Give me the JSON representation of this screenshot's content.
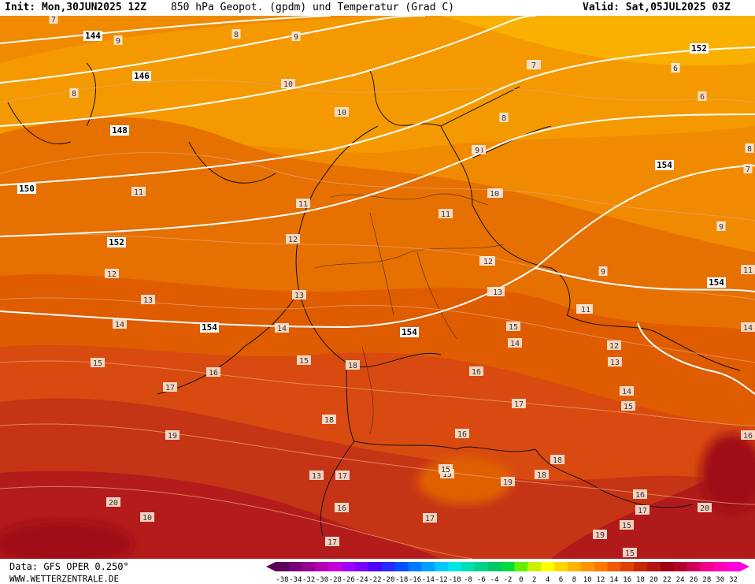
{
  "header": {
    "init": "Init: Mon,30JUN2025 12Z",
    "title": "850 hPa Geopot. (gpdm) und Temperatur (Grad C)",
    "valid": "Valid: Sat,05JUL2025 03Z"
  },
  "footer": {
    "source": "Data: GFS OPER 0.250°",
    "site": "WWW.WETTERZENTRALE.DE"
  },
  "colorbar": {
    "labels": [
      "-38",
      "-34",
      "-32",
      "-30",
      "-28",
      "-26",
      "-24",
      "-22",
      "-20",
      "-18",
      "-16",
      "-14",
      "-12",
      "-10",
      "-8",
      "-6",
      "-4",
      "-2",
      "0",
      "2",
      "4",
      "6",
      "8",
      "10",
      "12",
      "14",
      "16",
      "18",
      "20",
      "22",
      "24",
      "26",
      "28",
      "30",
      "32"
    ],
    "colors": [
      "#5a005a",
      "#780078",
      "#960096",
      "#b400b4",
      "#c800dc",
      "#a000ff",
      "#7800ff",
      "#5000ff",
      "#2828ff",
      "#0050ff",
      "#0078ff",
      "#00a0ff",
      "#00c8ff",
      "#00e6e6",
      "#00dcb4",
      "#00d28c",
      "#00c864",
      "#00dc3c",
      "#64f000",
      "#c8f000",
      "#ffff00",
      "#ffd700",
      "#ffb400",
      "#ff9600",
      "#ff7800",
      "#f05a00",
      "#e04000",
      "#c82800",
      "#b41414",
      "#a00014",
      "#b4002d",
      "#d2005a",
      "#f0008c",
      "#ff00b4",
      "#ff00dc"
    ]
  },
  "map": {
    "geopotential_labels": [
      {
        "text": "144"
      },
      {
        "text": "146"
      },
      {
        "text": "148"
      },
      {
        "text": "150"
      },
      {
        "text": "152"
      },
      {
        "text": "154"
      },
      {
        "text": "152"
      },
      {
        "text": "154"
      },
      {
        "text": "154"
      },
      {
        "text": "154"
      }
    ],
    "temperature_labels": [
      {
        "text": "7"
      },
      {
        "text": "9"
      },
      {
        "text": "8"
      },
      {
        "text": "9"
      },
      {
        "text": "8"
      },
      {
        "text": "10"
      },
      {
        "text": "10"
      },
      {
        "text": "11"
      },
      {
        "text": "11"
      },
      {
        "text": "12"
      },
      {
        "text": "12"
      },
      {
        "text": "13"
      },
      {
        "text": "14"
      },
      {
        "text": "15"
      },
      {
        "text": "16"
      },
      {
        "text": "17"
      },
      {
        "text": "18"
      },
      {
        "text": "19"
      },
      {
        "text": "20"
      },
      {
        "text": "10"
      },
      {
        "text": "9"
      },
      {
        "text": "8"
      },
      {
        "text": "7"
      },
      {
        "text": "6"
      },
      {
        "text": "8"
      },
      {
        "text": "8"
      },
      {
        "text": "9"
      },
      {
        "text": "10"
      },
      {
        "text": "11"
      },
      {
        "text": "12"
      },
      {
        "text": "13"
      },
      {
        "text": "14"
      },
      {
        "text": "15"
      },
      {
        "text": "16"
      },
      {
        "text": "17"
      },
      {
        "text": "18"
      },
      {
        "text": "15"
      },
      {
        "text": "15"
      },
      {
        "text": "19"
      },
      {
        "text": "20"
      },
      {
        "text": "19"
      },
      {
        "text": "13"
      },
      {
        "text": "17"
      },
      {
        "text": "16"
      },
      {
        "text": "17"
      },
      {
        "text": "17"
      },
      {
        "text": "16"
      },
      {
        "text": "18"
      },
      {
        "text": "15"
      },
      {
        "text": "16"
      },
      {
        "text": "17"
      },
      {
        "text": "15"
      },
      {
        "text": "16"
      },
      {
        "text": "14"
      },
      {
        "text": "13"
      },
      {
        "text": "12"
      },
      {
        "text": "11"
      },
      {
        "text": "10"
      },
      {
        "text": "11"
      },
      {
        "text": "12"
      },
      {
        "text": "13"
      },
      {
        "text": "14"
      },
      {
        "text": "15"
      },
      {
        "text": "18"
      },
      {
        "text": "15"
      },
      {
        "text": "14"
      },
      {
        "text": "13"
      },
      {
        "text": "12"
      },
      {
        "text": "11"
      },
      {
        "text": "10"
      },
      {
        "text": "9"
      },
      {
        "text": "8"
      },
      {
        "text": "7"
      },
      {
        "text": "6"
      },
      {
        "text": "9"
      },
      {
        "text": "8"
      }
    ]
  }
}
